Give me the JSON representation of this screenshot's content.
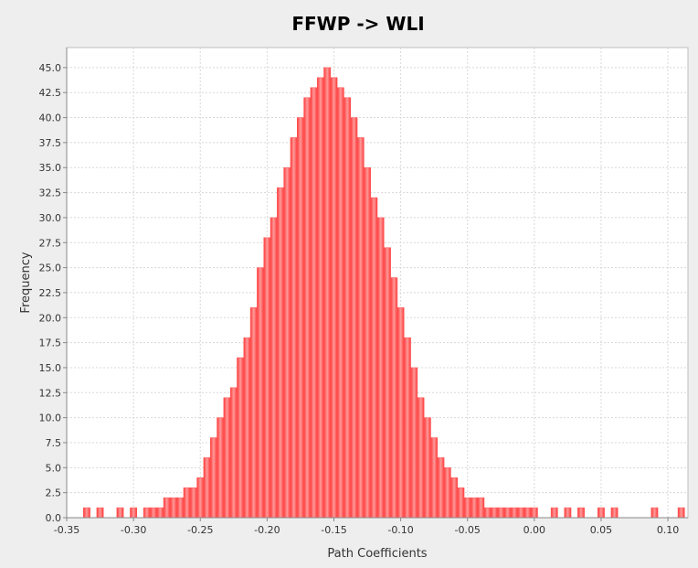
{
  "chart_data": {
    "type": "bar",
    "title": "FFWP -> WLI",
    "xlabel": "Path Coefficients",
    "ylabel": "Frequency",
    "xlim": [
      -0.35,
      0.115
    ],
    "ylim": [
      0,
      47
    ],
    "x_ticks": [
      -0.35,
      -0.3,
      -0.25,
      -0.2,
      -0.15,
      -0.1,
      -0.05,
      0.0,
      0.05,
      0.1
    ],
    "x_tick_labels": [
      "-0.35",
      "-0.30",
      "-0.25",
      "-0.20",
      "-0.15",
      "-0.10",
      "-0.05",
      "0.00",
      "0.05",
      "0.10"
    ],
    "y_ticks": [
      0,
      2.5,
      5,
      7.5,
      10,
      12.5,
      15,
      17.5,
      20,
      22.5,
      25,
      27.5,
      30,
      32.5,
      35,
      37.5,
      40,
      42.5,
      45
    ],
    "y_tick_labels": [
      "0.0",
      "2.5",
      "5.0",
      "7.5",
      "10.0",
      "12.5",
      "15.0",
      "17.5",
      "20.0",
      "22.5",
      "25.0",
      "27.5",
      "30.0",
      "32.5",
      "35.0",
      "37.5",
      "40.0",
      "42.5",
      "45.0"
    ],
    "grid": true,
    "bar_color": "#ff5555",
    "bin_width": 0.005,
    "categories": [
      -0.34,
      -0.335,
      -0.33,
      -0.325,
      -0.32,
      -0.315,
      -0.31,
      -0.305,
      -0.3,
      -0.295,
      -0.29,
      -0.285,
      -0.28,
      -0.275,
      -0.27,
      -0.265,
      -0.26,
      -0.255,
      -0.25,
      -0.245,
      -0.24,
      -0.235,
      -0.23,
      -0.225,
      -0.22,
      -0.215,
      -0.21,
      -0.205,
      -0.2,
      -0.195,
      -0.19,
      -0.185,
      -0.18,
      -0.175,
      -0.17,
      -0.165,
      -0.16,
      -0.155,
      -0.15,
      -0.145,
      -0.14,
      -0.135,
      -0.13,
      -0.125,
      -0.12,
      -0.115,
      -0.11,
      -0.105,
      -0.1,
      -0.095,
      -0.09,
      -0.085,
      -0.08,
      -0.075,
      -0.07,
      -0.065,
      -0.06,
      -0.055,
      -0.05,
      -0.045,
      -0.04,
      -0.035,
      -0.03,
      -0.025,
      -0.02,
      -0.015,
      -0.01,
      -0.005,
      0.0,
      0.005,
      0.01,
      0.015,
      0.02,
      0.025,
      0.03,
      0.035,
      0.04,
      0.045,
      0.05,
      0.055,
      0.06,
      0.065,
      0.07,
      0.075,
      0.08,
      0.085,
      0.09,
      0.095,
      0.1,
      0.105,
      0.11
    ],
    "values": [
      0,
      1,
      0,
      1,
      0,
      0,
      1,
      0,
      1,
      0,
      1,
      1,
      1,
      2,
      2,
      2,
      3,
      3,
      4,
      6,
      8,
      10,
      12,
      13,
      16,
      18,
      21,
      25,
      28,
      30,
      33,
      35,
      38,
      40,
      42,
      43,
      44,
      45,
      44,
      43,
      42,
      40,
      38,
      35,
      32,
      30,
      27,
      24,
      21,
      18,
      15,
      12,
      10,
      8,
      6,
      5,
      4,
      3,
      2,
      2,
      2,
      1,
      1,
      1,
      1,
      1,
      1,
      1,
      1,
      0,
      0,
      1,
      0,
      1,
      0,
      1,
      0,
      0,
      1,
      0,
      1,
      0,
      0,
      0,
      0,
      0,
      1,
      0,
      0,
      0,
      1
    ]
  }
}
